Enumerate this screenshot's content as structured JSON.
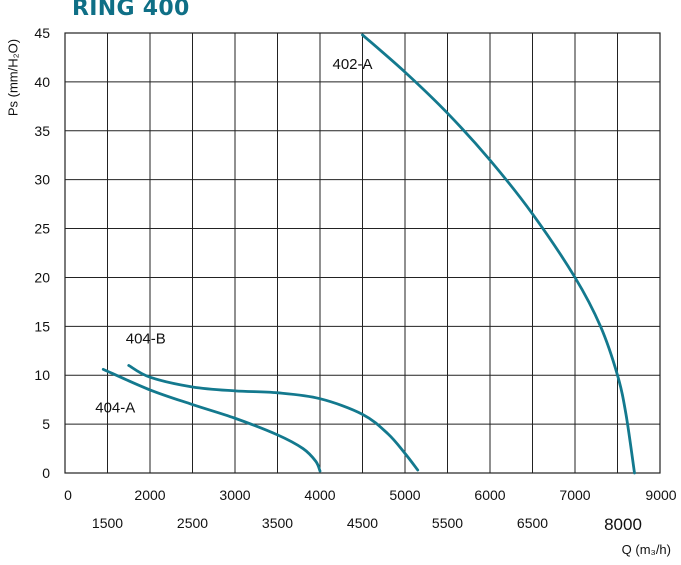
{
  "title": "RING 400",
  "chart_data": {
    "type": "line",
    "title": "RING 400",
    "ylabel": "Ps (mm/H₂O)",
    "xlabel": "Q (m₃/h)",
    "ylim": [
      0,
      45
    ],
    "y_ticks": [
      "0",
      "5",
      "10",
      "15",
      "20",
      "25",
      "30",
      "35",
      "40",
      "45"
    ],
    "x_ticks_upper": [
      "0",
      "2000",
      "3000",
      "4000",
      "5000",
      "6000",
      "7000",
      "9000"
    ],
    "x_ticks_lower": [
      "1500",
      "2500",
      "3500",
      "4500",
      "5500",
      "6500",
      "8000"
    ],
    "grid": true,
    "curve_color": "#13798e",
    "series": [
      {
        "name": "402-A",
        "x": [
          4500,
          5000,
          5500,
          6000,
          6500,
          7000,
          7300,
          7500,
          7600,
          7700
        ],
        "y": [
          44.8,
          41.0,
          36.8,
          32.0,
          26.5,
          20.0,
          15.0,
          10.0,
          6.0,
          0.0
        ]
      },
      {
        "name": "404-B",
        "x": [
          1750,
          2000,
          2500,
          3000,
          3500,
          4000,
          4500,
          4800,
          5000,
          5150
        ],
        "y": [
          11.0,
          9.8,
          8.8,
          8.4,
          8.2,
          7.6,
          6.0,
          4.0,
          2.0,
          0.3
        ]
      },
      {
        "name": "404-A",
        "x": [
          1450,
          2000,
          2500,
          3000,
          3500,
          3800,
          3950,
          4000
        ],
        "y": [
          10.6,
          8.5,
          7.0,
          5.6,
          3.9,
          2.5,
          1.2,
          0.2
        ]
      }
    ]
  }
}
